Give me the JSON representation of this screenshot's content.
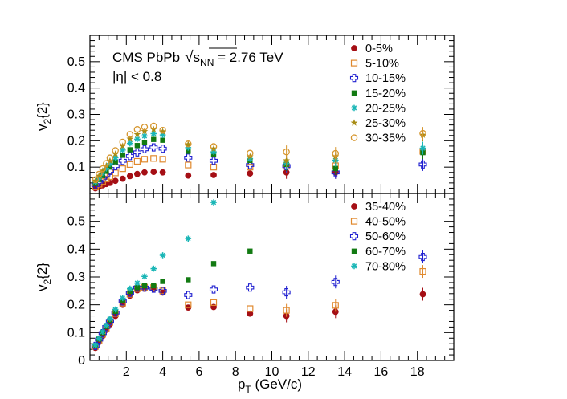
{
  "colors": {
    "0-5%": "#a50f15",
    "5-10%": "#e0892e",
    "10-15%": "#2020d0",
    "15-20%": "#127a12",
    "20-25%": "#1ab6b6",
    "25-30%": "#a88c14",
    "30-35%": "#d6962e",
    "35-40%": "#a50f15",
    "40-50%": "#e0892e",
    "50-60%": "#2020d0",
    "60-70%": "#127a12",
    "70-80%": "#1ab6b6"
  },
  "annotation": {
    "line1_prefix": "CMS  PbPb",
    "sqrt_symbol": "√",
    "s_label": "s",
    "nn_sub": "NN",
    "energy": " = 2.76 TeV",
    "eta_cut": "|η| < 0.8"
  },
  "chart_data": [
    {
      "type": "scatter",
      "panel": "top",
      "xlim": [
        0,
        20
      ],
      "ylim": [
        0,
        0.6
      ],
      "ylabel_main": "v",
      "ylabel_sub": "2",
      "ylabel_brace": "{2}",
      "yticks": [
        0.1,
        0.2,
        0.3,
        0.4,
        0.5
      ],
      "ytick_labels": [
        "0.1",
        "0.2",
        "0.3",
        "0.4",
        "0.5"
      ],
      "legend_position": "top-right",
      "series": [
        {
          "name": "0-5%",
          "marker": "filled-circle",
          "x": [
            0.3,
            0.5,
            0.7,
            0.9,
            1.1,
            1.4,
            1.8,
            2.2,
            2.6,
            3.0,
            3.5,
            4.0,
            5.4,
            6.8,
            8.8,
            10.8,
            13.5,
            18.3
          ],
          "y": [
            0.02,
            0.025,
            0.031,
            0.036,
            0.04,
            0.048,
            0.056,
            0.066,
            0.074,
            0.08,
            0.082,
            0.08,
            0.068,
            0.07,
            0.076,
            0.08,
            0.08,
            0.16
          ]
        },
        {
          "name": "5-10%",
          "marker": "open-square",
          "x": [
            0.3,
            0.5,
            0.7,
            0.9,
            1.1,
            1.4,
            1.8,
            2.2,
            2.6,
            3.0,
            3.5,
            4.0,
            5.4,
            6.8,
            8.8,
            10.8,
            13.5,
            18.3
          ],
          "y": [
            0.025,
            0.035,
            0.045,
            0.055,
            0.064,
            0.078,
            0.094,
            0.11,
            0.122,
            0.13,
            0.133,
            0.13,
            0.108,
            0.1,
            0.1,
            0.103,
            0.105,
            0.16
          ]
        },
        {
          "name": "10-15%",
          "marker": "open-cross",
          "x": [
            0.3,
            0.5,
            0.7,
            0.9,
            1.1,
            1.4,
            1.8,
            2.2,
            2.6,
            3.0,
            3.5,
            4.0,
            5.4,
            6.8,
            8.8,
            10.8,
            13.5,
            18.3
          ],
          "y": [
            0.032,
            0.045,
            0.058,
            0.072,
            0.086,
            0.104,
            0.124,
            0.142,
            0.156,
            0.168,
            0.175,
            0.17,
            0.136,
            0.124,
            0.108,
            0.104,
            0.08,
            0.11
          ]
        },
        {
          "name": "15-20%",
          "marker": "filled-square",
          "x": [
            0.3,
            0.5,
            0.7,
            0.9,
            1.1,
            1.4,
            1.8,
            2.2,
            2.6,
            3.0,
            3.5,
            4.0,
            5.4,
            6.8,
            8.8,
            10.8,
            13.5,
            18.3
          ],
          "y": [
            0.038,
            0.053,
            0.068,
            0.084,
            0.1,
            0.12,
            0.145,
            0.166,
            0.182,
            0.194,
            0.205,
            0.202,
            0.16,
            0.148,
            0.125,
            0.11,
            0.095,
            0.155
          ]
        },
        {
          "name": "20-25%",
          "marker": "star-asterisk",
          "x": [
            0.3,
            0.5,
            0.7,
            0.9,
            1.1,
            1.4,
            1.8,
            2.2,
            2.6,
            3.0,
            3.5,
            4.0,
            5.4,
            6.8,
            8.8,
            10.8,
            13.5,
            18.3
          ],
          "y": [
            0.044,
            0.061,
            0.078,
            0.095,
            0.113,
            0.136,
            0.165,
            0.19,
            0.206,
            0.218,
            0.227,
            0.222,
            0.174,
            0.158,
            0.132,
            0.114,
            0.126,
            0.172
          ]
        },
        {
          "name": "25-30%",
          "marker": "filled-star",
          "x": [
            0.3,
            0.5,
            0.7,
            0.9,
            1.1,
            1.4,
            1.8,
            2.2,
            2.6,
            3.0,
            3.5,
            4.0,
            5.4,
            6.8,
            8.8,
            10.8,
            13.5,
            18.3
          ],
          "y": [
            0.048,
            0.067,
            0.086,
            0.105,
            0.124,
            0.15,
            0.18,
            0.207,
            0.224,
            0.236,
            0.243,
            0.235,
            0.186,
            0.17,
            0.14,
            0.125,
            0.14,
            0.222
          ]
        },
        {
          "name": "30-35%",
          "marker": "open-circle",
          "x": [
            0.3,
            0.5,
            0.7,
            0.9,
            1.1,
            1.4,
            1.8,
            2.2,
            2.6,
            3.0,
            3.5,
            4.0,
            5.4,
            6.8,
            8.8,
            10.8,
            13.5,
            18.3
          ],
          "y": [
            0.052,
            0.073,
            0.094,
            0.114,
            0.135,
            0.163,
            0.195,
            0.224,
            0.243,
            0.252,
            0.256,
            0.24,
            0.188,
            0.178,
            0.153,
            0.158,
            0.152,
            0.228
          ]
        }
      ]
    },
    {
      "type": "scatter",
      "panel": "bottom",
      "xlim": [
        0,
        20
      ],
      "ylim": [
        0,
        0.6
      ],
      "xlabel_main": "p",
      "xlabel_sub": "T",
      "xlabel_unit": " (GeV/c)",
      "ylabel_main": "v",
      "ylabel_sub": "2",
      "ylabel_brace": "{2}",
      "xticks": [
        2,
        4,
        6,
        8,
        10,
        12,
        14,
        16,
        18
      ],
      "xtick_labels": [
        "2",
        "4",
        "6",
        "8",
        "10",
        "12",
        "14",
        "16",
        "18"
      ],
      "yticks": [
        0,
        0.1,
        0.2,
        0.3,
        0.4,
        0.5
      ],
      "ytick_labels": [
        "0",
        "0.1",
        "0.2",
        "0.3",
        "0.4",
        "0.5"
      ],
      "legend_position": "top-right",
      "series": [
        {
          "name": "35-40%",
          "marker": "filled-circle",
          "x": [
            0.3,
            0.5,
            0.7,
            0.9,
            1.1,
            1.4,
            1.8,
            2.2,
            2.6,
            3.0,
            3.5,
            4.0,
            5.4,
            6.8,
            8.8,
            10.8,
            13.5,
            18.3
          ],
          "y": [
            0.045,
            0.066,
            0.088,
            0.11,
            0.13,
            0.16,
            0.2,
            0.233,
            0.252,
            0.258,
            0.258,
            0.244,
            0.19,
            0.192,
            0.168,
            0.16,
            0.175,
            0.238
          ]
        },
        {
          "name": "40-50%",
          "marker": "open-square",
          "x": [
            0.3,
            0.5,
            0.7,
            0.9,
            1.1,
            1.4,
            1.8,
            2.2,
            2.6,
            3.0,
            3.5,
            4.0,
            5.4,
            6.8,
            8.8,
            10.8,
            13.5,
            18.3
          ],
          "y": [
            0.05,
            0.072,
            0.094,
            0.116,
            0.138,
            0.168,
            0.206,
            0.238,
            0.258,
            0.263,
            0.262,
            0.25,
            0.2,
            0.208,
            0.186,
            0.18,
            0.198,
            0.32
          ]
        },
        {
          "name": "50-60%",
          "marker": "open-cross",
          "x": [
            0.3,
            0.5,
            0.7,
            0.9,
            1.1,
            1.4,
            1.8,
            2.2,
            2.6,
            3.0,
            3.5,
            4.0,
            5.4,
            6.8,
            8.8,
            10.8,
            13.5,
            18.3
          ],
          "y": [
            0.052,
            0.075,
            0.098,
            0.12,
            0.142,
            0.172,
            0.212,
            0.243,
            0.262,
            0.262,
            0.258,
            0.25,
            0.235,
            0.255,
            0.262,
            0.245,
            0.282,
            0.372
          ]
        },
        {
          "name": "60-70%",
          "marker": "filled-square",
          "x": [
            0.3,
            0.5,
            0.7,
            0.9,
            1.1,
            1.4,
            1.8,
            2.2,
            2.6,
            3.0,
            3.5,
            4.0,
            5.4,
            6.8,
            8.8
          ],
          "y": [
            0.053,
            0.077,
            0.1,
            0.122,
            0.145,
            0.176,
            0.216,
            0.248,
            0.262,
            0.268,
            0.268,
            0.284,
            0.29,
            0.348,
            0.393
          ]
        },
        {
          "name": "70-80%",
          "marker": "star-asterisk",
          "x": [
            0.3,
            0.5,
            0.7,
            0.9,
            1.1,
            1.4,
            1.8,
            2.2,
            2.6,
            3.0,
            3.5,
            4.0,
            5.4,
            6.8
          ],
          "y": [
            0.055,
            0.079,
            0.103,
            0.126,
            0.15,
            0.183,
            0.224,
            0.258,
            0.278,
            0.302,
            0.33,
            0.378,
            0.438,
            0.568
          ]
        }
      ]
    }
  ]
}
